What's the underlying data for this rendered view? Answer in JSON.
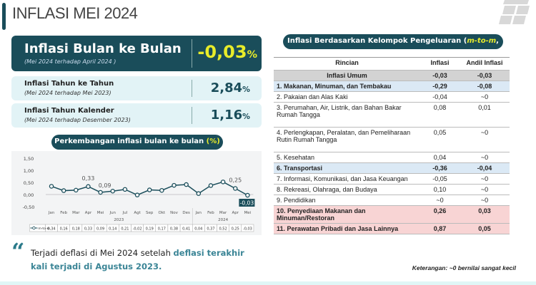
{
  "title": "INFLASI MEI 2024",
  "cards": [
    {
      "label": "Inflasi Bulan ke Bulan",
      "sub": "(Mei 2024 terhadap April 2024 )",
      "value": "-0,03",
      "unit": "%"
    },
    {
      "label": "Inflasi Tahun ke Tahun",
      "sub": "(Mei 2024 terhadap Mei 2023)",
      "value": "2,84",
      "unit": "%"
    },
    {
      "label": "Inflasi Tahun Kalender",
      "sub": "(Mei 2024 terhadap Desember 2023)",
      "value": "1,16",
      "unit": "%"
    }
  ],
  "chart_pill": {
    "text": "Perkembangan inflasi bulan ke bulan ",
    "unit": "(%)"
  },
  "chart_data": {
    "type": "line",
    "title": "Perkembangan inflasi bulan ke bulan (%)",
    "categories": [
      "Jan",
      "Feb",
      "Mar",
      "Apr",
      "Mei",
      "Jun",
      "Jul",
      "Agt",
      "Sep",
      "Okt",
      "Nov",
      "Des",
      "Jan",
      "Feb",
      "Mar",
      "Apr",
      "Mei"
    ],
    "years": [
      {
        "label": "2023",
        "count": 12
      },
      {
        "label": "2024",
        "count": 5
      }
    ],
    "series": [
      {
        "name": "m-to-m",
        "values": [
          0.34,
          0.16,
          0.18,
          0.33,
          0.09,
          0.14,
          0.21,
          -0.02,
          0.19,
          0.17,
          0.38,
          0.41,
          0.04,
          0.37,
          0.52,
          0.25,
          -0.03
        ]
      }
    ],
    "table_values": [
      "0,34",
      "0,16",
      "0,18",
      "0,33",
      "0,09",
      "0,14",
      "0,21",
      "-0,02",
      "0,19",
      "0,17",
      "0,38",
      "0,41",
      "0,04",
      "0,37",
      "0,52",
      "0,25",
      "-0,03"
    ],
    "annotations": [
      {
        "index": 3,
        "text": "0,33"
      },
      {
        "index": 4,
        "text": "0,09"
      },
      {
        "index": 15,
        "text": "0,25"
      },
      {
        "index": 16,
        "text": "-0,03"
      }
    ],
    "yticks": [
      "1,50",
      "1,00",
      "0,50",
      "0,00",
      "-0,50"
    ],
    "ytick_values": [
      1.5,
      1.0,
      0.5,
      0.0,
      -0.5
    ],
    "ylim": [
      -0.5,
      1.5
    ],
    "color": "#1a4d5a"
  },
  "quote": {
    "text": "Terjadi deflasi di Mei 2024 setelah ",
    "highlight": "deflasi terakhir kali terjadi di Agustus 2023."
  },
  "table_pill": {
    "pre": "Inflasi Berdasarkan Kelompok Pengeluaran (",
    "em": "m-to-m",
    ",": "",
    "post": ", %)"
  },
  "table": {
    "headers": [
      "Rincian",
      "Inflasi",
      "Andil Inflasi"
    ],
    "rows": [
      {
        "name": "Inflasi Umum",
        "inflasi": "-0,03",
        "andil": "-0,03",
        "style": "gray"
      },
      {
        "name": "1. Makanan, Minuman, dan Tembakau",
        "inflasi": "-0,29",
        "andil": "-0,08",
        "style": "blue"
      },
      {
        "name": "2. Pakaian dan Alas Kaki",
        "inflasi": "-0,04",
        "andil": "~0",
        "style": ""
      },
      {
        "name": "3. Perumahan, Air, Listrik, dan Bahan Bakar Rumah Tangga",
        "inflasi": "0,08",
        "andil": "0,01",
        "style": ""
      },
      {
        "name": "4. Perlengkapan, Peralatan, dan Pemeliharaan Rutin Rumah Tangga",
        "inflasi": "0,05",
        "andil": "~0",
        "style": ""
      },
      {
        "name": "5. Kesehatan",
        "inflasi": "0,04",
        "andil": "~0",
        "style": ""
      },
      {
        "name": "6. Transportasi",
        "inflasi": "-0,36",
        "andil": "-0,04",
        "style": "blue"
      },
      {
        "name": "7. Informasi, Komunikasi, dan Jasa Keuangan",
        "inflasi": "-0,05",
        "andil": "~0",
        "style": ""
      },
      {
        "name": "8. Rekreasi, Olahraga, dan Budaya",
        "inflasi": "0,10",
        "andil": "~0",
        "style": ""
      },
      {
        "name": "9. Pendidikan",
        "inflasi": "~0",
        "andil": "~0",
        "style": ""
      },
      {
        "name": "10. Penyediaan Makanan dan Minuman/Restoran",
        "inflasi": "0,26",
        "andil": "0,03",
        "style": "pink"
      },
      {
        "name": "11. Perawatan Pribadi dan Jasa Lainnya",
        "inflasi": "0,87",
        "andil": "0,05",
        "style": "pink"
      }
    ],
    "note": "Keterangan: ~0 bernilai sangat kecil"
  }
}
